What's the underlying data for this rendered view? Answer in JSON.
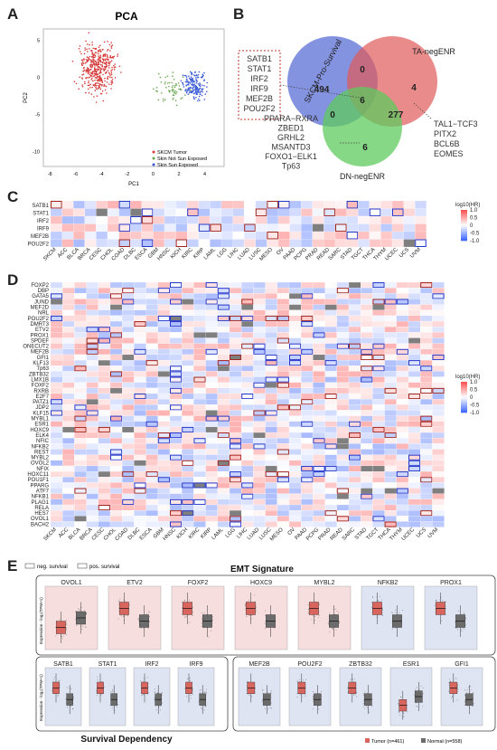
{
  "panels": {
    "a": "A",
    "b": "B",
    "c": "C",
    "d": "D",
    "e": "E"
  },
  "pca": {
    "title": "PCA",
    "xlabel": "PC1",
    "ylabel": "PC2",
    "xticks": [
      "-8",
      "-6",
      "-4",
      "-2",
      "0",
      "2",
      "4"
    ],
    "yticks": [
      "5",
      "0",
      "-5",
      "-10"
    ],
    "legend": [
      "SKCM Tumor",
      "Skin Not Sun Exposed",
      "Skin Sun Exposed"
    ],
    "colors": {
      "tumor": "#d63b3b",
      "not_sun": "#6aa84f",
      "sun": "#3b5bd6"
    }
  },
  "venn": {
    "sets": [
      "SKCM-Pro-Survival",
      "TA-negENR",
      "DN-negENR"
    ],
    "counts": {
      "skcm_only": "494",
      "ta_only": "4",
      "dn_only": "6",
      "skcm_ta": "0",
      "skcm_dn": "0",
      "ta_dn": "277",
      "all": "6"
    },
    "center_genes": [
      "SATB1",
      "STAT1",
      "IRF2",
      "IRF9",
      "MEF2B",
      "POU2F2"
    ],
    "dn_genes": [
      "PPARA−RXRA",
      "ZBED1",
      "GRHL2",
      "MSANTD3",
      "FOXO1−ELK1",
      "Tp63"
    ],
    "ta_dn_genes": [
      "TAL1−TCF3",
      "PITX2",
      "BCL6B",
      "EOMES"
    ],
    "colors": {
      "skcm": "#5b6fd6",
      "ta": "#e05a5a",
      "dn": "#5ec95e"
    }
  },
  "heat_c": {
    "rows": [
      "SATB1",
      "STAT1",
      "IRF2",
      "IRF9",
      "MEF2B",
      "POU2F2"
    ],
    "cols": [
      "SKCM",
      "ACC",
      "BLCA",
      "BRCA",
      "CESC",
      "CHOL",
      "COAD",
      "DLBC",
      "ESCA",
      "GBM",
      "HNSC",
      "KICH",
      "KIRC",
      "KIRP",
      "LAML",
      "LGG",
      "LIHC",
      "LUAD",
      "LUSC",
      "MESO",
      "OV",
      "PAAD",
      "PCPG",
      "PRAD",
      "READ",
      "SARC",
      "STAD",
      "TGCT",
      "THCA",
      "THYM",
      "UCEC",
      "UCS",
      "UVM"
    ],
    "colorbar_title": "log10(HR)",
    "colorbar_ticks": [
      "1.0",
      "0.5",
      "0",
      "-0.5",
      "-1.0"
    ]
  },
  "heat_d": {
    "rows": [
      "FOXP2",
      "DBP",
      "GATA5",
      "JUND",
      "MEF2D",
      "NRL",
      "POU2F2",
      "DMRT3",
      "ETV2",
      "PROX1",
      "SPDEF",
      "ONECUT2",
      "MEF2B",
      "GFI1",
      "KLF13",
      "Tp63",
      "ZBTB32",
      "LMX1B",
      "FOXF2",
      "RXRB",
      "E2F7",
      "PATZ1",
      "JDP2",
      "KLF15",
      "MYBL1",
      "ESR1",
      "HOXC9",
      "ELK4",
      "NFIC",
      "NFKB2",
      "REST",
      "MYBL2",
      "OVOL2",
      "NFIX",
      "HOXC11",
      "POU1F1",
      "PPARG",
      "ATF7",
      "NFKB1",
      "PLAG1",
      "RELA",
      "HES7",
      "OVOL1",
      "BACH2"
    ],
    "cols": [
      "SKCM",
      "ACC",
      "BLCA",
      "BRCA",
      "CESC",
      "CHOL",
      "COAD",
      "DLBC",
      "ESCA",
      "GBM",
      "HNSC",
      "KICH",
      "KIRC",
      "KIRP",
      "LAML",
      "LGG",
      "LIHC",
      "LUAD",
      "LUSC",
      "MESO",
      "OV",
      "PAAD",
      "PCPG",
      "PRAD",
      "READ",
      "SARC",
      "STAD",
      "TGCT",
      "THCA",
      "THYM",
      "UCEC",
      "UCS",
      "UVM"
    ],
    "colorbar_title": "log10(HR)",
    "colorbar_ticks": [
      "1.0",
      "0.5",
      "0",
      "-0.5",
      "-1.0"
    ]
  },
  "panel_e": {
    "legend": [
      "neg. survival",
      "pos. survival"
    ],
    "emt_title": "EMT Signature",
    "surv_title": "Survival Dependency",
    "ylabel": "Expression - log₂(TPM+1)",
    "emt_genes": [
      "OVOL1",
      "ETV2",
      "FOXF2",
      "HOXC9",
      "MYBL2",
      "NFKB2",
      "PROX1"
    ],
    "surv_genes_left": [
      "SATB1",
      "STAT1",
      "IRF2",
      "IRF9"
    ],
    "surv_genes_right": [
      "MEF2B",
      "POU2F2",
      "ZBTB32",
      "ESR1",
      "GFI1"
    ],
    "tumor_label": "Tumor (n=461)",
    "normal_label": "Normal (n=558)",
    "colors": {
      "tumor": "#d9655f",
      "normal": "#6b6b6b",
      "neg_bg": "#f7dede",
      "pos_bg": "#dfe4f3"
    }
  }
}
